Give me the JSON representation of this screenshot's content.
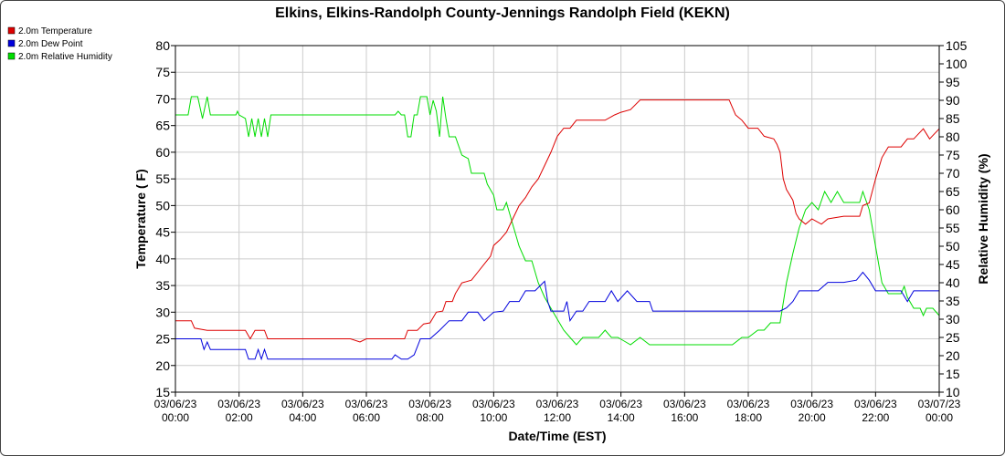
{
  "chart_data": {
    "type": "line",
    "title": "Elkins, Elkins-Randolph County-Jennings Randolph Field (KEKN)",
    "xlabel": "Date/Time (EST)",
    "ylabel": "Temperature ( F)",
    "y2label": "Relative Humidity (%)",
    "xlim": [
      0,
      24
    ],
    "ylim": [
      15,
      80
    ],
    "y2lim": [
      10,
      105
    ],
    "yticks": [
      "80",
      "75",
      "70",
      "65",
      "60",
      "55",
      "50",
      "45",
      "40",
      "35",
      "30",
      "25",
      "20",
      "15"
    ],
    "y2ticks": [
      "105",
      "100",
      "95",
      "90",
      "85",
      "80",
      "75",
      "70",
      "65",
      "60",
      "55",
      "50",
      "45",
      "40",
      "35",
      "30",
      "25",
      "20",
      "15",
      "10"
    ],
    "xticks": [
      {
        "date": "03/06/23",
        "time": "00:00"
      },
      {
        "date": "03/06/23",
        "time": "02:00"
      },
      {
        "date": "03/06/23",
        "time": "04:00"
      },
      {
        "date": "03/06/23",
        "time": "06:00"
      },
      {
        "date": "03/06/23",
        "time": "08:00"
      },
      {
        "date": "03/06/23",
        "time": "10:00"
      },
      {
        "date": "03/06/23",
        "time": "12:00"
      },
      {
        "date": "03/06/23",
        "time": "14:00"
      },
      {
        "date": "03/06/23",
        "time": "16:00"
      },
      {
        "date": "03/06/23",
        "time": "18:00"
      },
      {
        "date": "03/06/23",
        "time": "20:00"
      },
      {
        "date": "03/06/23",
        "time": "22:00"
      },
      {
        "date": "03/07/23",
        "time": "00:00"
      }
    ],
    "grid": true,
    "legend_position": "top-left",
    "series": [
      {
        "name": "2.0m Temperature",
        "color": "#dd0000",
        "axis": "left",
        "points": [
          [
            0.0,
            28.4
          ],
          [
            0.5,
            28.4
          ],
          [
            0.6,
            27.0
          ],
          [
            1.0,
            26.6
          ],
          [
            1.5,
            26.6
          ],
          [
            2.0,
            26.6
          ],
          [
            2.2,
            26.6
          ],
          [
            2.35,
            25.0
          ],
          [
            2.5,
            26.6
          ],
          [
            2.8,
            26.6
          ],
          [
            2.9,
            25.0
          ],
          [
            3.5,
            25.0
          ],
          [
            4.5,
            25.0
          ],
          [
            5.5,
            25.0
          ],
          [
            5.8,
            24.4
          ],
          [
            6.0,
            25.0
          ],
          [
            7.0,
            25.0
          ],
          [
            7.2,
            25.0
          ],
          [
            7.3,
            26.6
          ],
          [
            7.6,
            26.6
          ],
          [
            7.8,
            27.8
          ],
          [
            8.0,
            28.0
          ],
          [
            8.2,
            30.0
          ],
          [
            8.4,
            30.2
          ],
          [
            8.5,
            32.0
          ],
          [
            8.7,
            32.0
          ],
          [
            8.8,
            33.5
          ],
          [
            9.0,
            35.5
          ],
          [
            9.3,
            36.0
          ],
          [
            9.5,
            37.5
          ],
          [
            9.7,
            39.0
          ],
          [
            9.9,
            40.5
          ],
          [
            10.0,
            42.5
          ],
          [
            10.2,
            43.6
          ],
          [
            10.4,
            45.0
          ],
          [
            10.6,
            47.5
          ],
          [
            10.8,
            50.0
          ],
          [
            11.0,
            51.5
          ],
          [
            11.2,
            53.5
          ],
          [
            11.4,
            55.0
          ],
          [
            11.6,
            57.5
          ],
          [
            11.8,
            60.0
          ],
          [
            12.0,
            63.0
          ],
          [
            12.2,
            64.5
          ],
          [
            12.4,
            64.5
          ],
          [
            12.6,
            66.0
          ],
          [
            13.0,
            66.0
          ],
          [
            13.5,
            66.0
          ],
          [
            13.8,
            67.0
          ],
          [
            14.0,
            67.5
          ],
          [
            14.3,
            68.0
          ],
          [
            14.6,
            69.8
          ],
          [
            15.0,
            69.8
          ],
          [
            15.5,
            69.8
          ],
          [
            16.0,
            69.8
          ],
          [
            16.5,
            69.8
          ],
          [
            17.0,
            69.8
          ],
          [
            17.4,
            69.8
          ],
          [
            17.6,
            67.0
          ],
          [
            17.8,
            66.0
          ],
          [
            18.0,
            64.5
          ],
          [
            18.3,
            64.5
          ],
          [
            18.5,
            63.0
          ],
          [
            18.8,
            62.5
          ],
          [
            18.9,
            61.5
          ],
          [
            19.0,
            60.0
          ],
          [
            19.1,
            55.0
          ],
          [
            19.2,
            53.0
          ],
          [
            19.4,
            51.0
          ],
          [
            19.5,
            48.5
          ],
          [
            19.6,
            47.5
          ],
          [
            19.8,
            46.5
          ],
          [
            20.0,
            47.5
          ],
          [
            20.3,
            46.5
          ],
          [
            20.5,
            47.5
          ],
          [
            21.0,
            48.0
          ],
          [
            21.5,
            48.0
          ],
          [
            21.6,
            50.0
          ],
          [
            21.8,
            50.5
          ],
          [
            22.0,
            55.0
          ],
          [
            22.2,
            59.0
          ],
          [
            22.4,
            61.0
          ],
          [
            22.6,
            61.0
          ],
          [
            22.8,
            61.0
          ],
          [
            23.0,
            62.5
          ],
          [
            23.2,
            62.5
          ],
          [
            23.5,
            64.4
          ],
          [
            23.7,
            62.5
          ],
          [
            24.0,
            64.4
          ]
        ]
      },
      {
        "name": "2.0m Dew Point",
        "color": "#0000dd",
        "axis": "left",
        "points": [
          [
            0.0,
            25.0
          ],
          [
            0.8,
            25.0
          ],
          [
            0.9,
            23.0
          ],
          [
            1.0,
            24.4
          ],
          [
            1.1,
            23.0
          ],
          [
            2.0,
            23.0
          ],
          [
            2.2,
            23.0
          ],
          [
            2.3,
            21.2
          ],
          [
            2.5,
            21.2
          ],
          [
            2.6,
            23.0
          ],
          [
            2.7,
            21.2
          ],
          [
            2.8,
            23.0
          ],
          [
            2.9,
            21.2
          ],
          [
            3.5,
            21.2
          ],
          [
            4.0,
            21.2
          ],
          [
            5.0,
            21.2
          ],
          [
            6.0,
            21.2
          ],
          [
            6.8,
            21.2
          ],
          [
            6.9,
            22.0
          ],
          [
            7.1,
            21.2
          ],
          [
            7.3,
            21.2
          ],
          [
            7.5,
            22.0
          ],
          [
            7.7,
            25.0
          ],
          [
            8.0,
            25.0
          ],
          [
            8.3,
            26.6
          ],
          [
            8.6,
            28.4
          ],
          [
            9.0,
            28.4
          ],
          [
            9.2,
            30.0
          ],
          [
            9.5,
            30.0
          ],
          [
            9.7,
            28.4
          ],
          [
            10.0,
            30.0
          ],
          [
            10.3,
            30.2
          ],
          [
            10.5,
            32.0
          ],
          [
            10.8,
            32.0
          ],
          [
            11.0,
            34.0
          ],
          [
            11.3,
            34.0
          ],
          [
            11.6,
            35.8
          ],
          [
            11.7,
            32.0
          ],
          [
            11.8,
            30.2
          ],
          [
            12.0,
            30.2
          ],
          [
            12.2,
            30.2
          ],
          [
            12.3,
            32.0
          ],
          [
            12.4,
            28.4
          ],
          [
            12.6,
            30.2
          ],
          [
            12.8,
            30.2
          ],
          [
            13.0,
            32.0
          ],
          [
            13.5,
            32.0
          ],
          [
            13.7,
            34.0
          ],
          [
            13.9,
            32.0
          ],
          [
            14.2,
            34.0
          ],
          [
            14.5,
            32.0
          ],
          [
            14.9,
            32.0
          ],
          [
            15.0,
            30.2
          ],
          [
            15.5,
            30.2
          ],
          [
            16.0,
            30.2
          ],
          [
            17.0,
            30.2
          ],
          [
            17.4,
            30.2
          ],
          [
            18.0,
            30.2
          ],
          [
            18.5,
            30.2
          ],
          [
            19.0,
            30.2
          ],
          [
            19.2,
            30.8
          ],
          [
            19.4,
            32.0
          ],
          [
            19.6,
            34.0
          ],
          [
            20.0,
            34.0
          ],
          [
            20.2,
            34.0
          ],
          [
            20.5,
            35.6
          ],
          [
            21.0,
            35.6
          ],
          [
            21.4,
            36.0
          ],
          [
            21.6,
            37.5
          ],
          [
            21.8,
            36.0
          ],
          [
            22.0,
            34.0
          ],
          [
            22.5,
            34.0
          ],
          [
            22.8,
            34.0
          ],
          [
            23.0,
            32.0
          ],
          [
            23.2,
            34.0
          ],
          [
            24.0,
            34.0
          ]
        ]
      },
      {
        "name": "2.0m Relative Humidity",
        "color": "#00dd00",
        "axis": "right",
        "points": [
          [
            0.0,
            86.0
          ],
          [
            0.4,
            86.0
          ],
          [
            0.5,
            91.0
          ],
          [
            0.7,
            91.0
          ],
          [
            0.85,
            85.0
          ],
          [
            1.0,
            91.0
          ],
          [
            1.1,
            86.0
          ],
          [
            1.5,
            86.0
          ],
          [
            1.9,
            86.0
          ],
          [
            1.95,
            87.0
          ],
          [
            2.0,
            86.0
          ],
          [
            2.2,
            85.0
          ],
          [
            2.3,
            80.0
          ],
          [
            2.4,
            85.0
          ],
          [
            2.5,
            80.0
          ],
          [
            2.6,
            85.0
          ],
          [
            2.7,
            80.0
          ],
          [
            2.8,
            85.0
          ],
          [
            2.9,
            80.0
          ],
          [
            3.0,
            86.0
          ],
          [
            4.0,
            86.0
          ],
          [
            4.5,
            86.0
          ],
          [
            5.0,
            86.0
          ],
          [
            6.0,
            86.0
          ],
          [
            6.9,
            86.0
          ],
          [
            7.0,
            87.0
          ],
          [
            7.1,
            86.0
          ],
          [
            7.2,
            86.0
          ],
          [
            7.3,
            80.0
          ],
          [
            7.4,
            80.0
          ],
          [
            7.5,
            86.0
          ],
          [
            7.6,
            86.0
          ],
          [
            7.7,
            91.0
          ],
          [
            7.9,
            91.0
          ],
          [
            8.0,
            86.0
          ],
          [
            8.1,
            90.0
          ],
          [
            8.2,
            87.0
          ],
          [
            8.3,
            80.0
          ],
          [
            8.4,
            91.0
          ],
          [
            8.5,
            85.0
          ],
          [
            8.6,
            80.0
          ],
          [
            8.8,
            80.0
          ],
          [
            9.0,
            75.0
          ],
          [
            9.2,
            74.0
          ],
          [
            9.3,
            70.0
          ],
          [
            9.7,
            70.0
          ],
          [
            9.8,
            67.0
          ],
          [
            10.0,
            64.0
          ],
          [
            10.1,
            60.0
          ],
          [
            10.3,
            60.0
          ],
          [
            10.4,
            62.0
          ],
          [
            10.6,
            56.0
          ],
          [
            10.8,
            50.0
          ],
          [
            11.0,
            46.0
          ],
          [
            11.2,
            46.0
          ],
          [
            11.4,
            40.0
          ],
          [
            11.6,
            36.0
          ],
          [
            11.8,
            33.0
          ],
          [
            12.0,
            30.0
          ],
          [
            12.2,
            27.0
          ],
          [
            12.4,
            25.0
          ],
          [
            12.6,
            23.0
          ],
          [
            12.8,
            25.0
          ],
          [
            13.0,
            25.0
          ],
          [
            13.3,
            25.0
          ],
          [
            13.5,
            27.0
          ],
          [
            13.7,
            25.0
          ],
          [
            13.9,
            25.0
          ],
          [
            14.1,
            24.0
          ],
          [
            14.3,
            23.0
          ],
          [
            14.6,
            25.0
          ],
          [
            14.9,
            23.0
          ],
          [
            15.1,
            23.0
          ],
          [
            15.5,
            23.0
          ],
          [
            16.0,
            23.0
          ],
          [
            16.5,
            23.0
          ],
          [
            17.0,
            23.0
          ],
          [
            17.5,
            23.0
          ],
          [
            17.8,
            25.0
          ],
          [
            18.0,
            25.0
          ],
          [
            18.3,
            27.0
          ],
          [
            18.5,
            27.0
          ],
          [
            18.7,
            29.0
          ],
          [
            19.0,
            29.0
          ],
          [
            19.2,
            40.0
          ],
          [
            19.4,
            48.0
          ],
          [
            19.6,
            55.0
          ],
          [
            19.8,
            60.0
          ],
          [
            20.0,
            62.0
          ],
          [
            20.2,
            60.0
          ],
          [
            20.4,
            65.0
          ],
          [
            20.6,
            62.0
          ],
          [
            20.8,
            65.0
          ],
          [
            21.0,
            62.0
          ],
          [
            21.2,
            62.0
          ],
          [
            21.5,
            62.0
          ],
          [
            21.6,
            65.0
          ],
          [
            21.8,
            60.0
          ],
          [
            21.9,
            55.0
          ],
          [
            22.0,
            50.0
          ],
          [
            22.2,
            40.0
          ],
          [
            22.4,
            37.0
          ],
          [
            22.6,
            37.0
          ],
          [
            22.8,
            37.0
          ],
          [
            22.9,
            39.0
          ],
          [
            23.0,
            36.0
          ],
          [
            23.2,
            33.0
          ],
          [
            23.4,
            33.0
          ],
          [
            23.5,
            31.0
          ],
          [
            23.6,
            33.0
          ],
          [
            23.8,
            33.0
          ],
          [
            24.0,
            31.0
          ]
        ]
      }
    ]
  }
}
